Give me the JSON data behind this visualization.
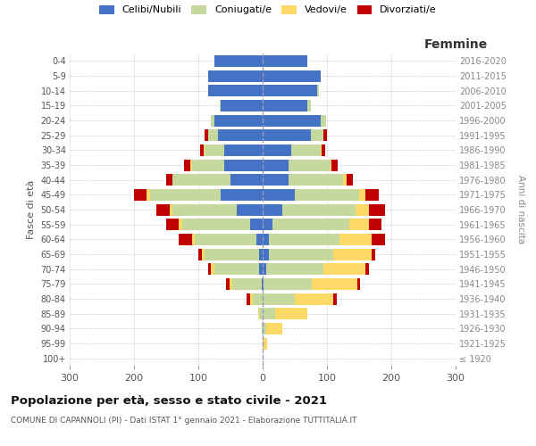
{
  "age_groups": [
    "100+",
    "95-99",
    "90-94",
    "85-89",
    "80-84",
    "75-79",
    "70-74",
    "65-69",
    "60-64",
    "55-59",
    "50-54",
    "45-49",
    "40-44",
    "35-39",
    "30-34",
    "25-29",
    "20-24",
    "15-19",
    "10-14",
    "5-9",
    "0-4"
  ],
  "birth_years": [
    "≤ 1920",
    "1921-1925",
    "1926-1930",
    "1931-1935",
    "1936-1940",
    "1941-1945",
    "1946-1950",
    "1951-1955",
    "1956-1960",
    "1961-1965",
    "1966-1970",
    "1971-1975",
    "1976-1980",
    "1981-1985",
    "1986-1990",
    "1991-1995",
    "1996-2000",
    "2001-2005",
    "2006-2010",
    "2011-2015",
    "2016-2020"
  ],
  "male": {
    "celibi": [
      0,
      0,
      0,
      0,
      0,
      2,
      5,
      5,
      10,
      20,
      40,
      65,
      50,
      60,
      60,
      70,
      75,
      65,
      85,
      85,
      75
    ],
    "coniugati": [
      0,
      0,
      2,
      5,
      15,
      45,
      70,
      85,
      95,
      105,
      100,
      110,
      90,
      50,
      30,
      15,
      5,
      2,
      0,
      0,
      0
    ],
    "vedovi": [
      0,
      0,
      0,
      2,
      5,
      5,
      5,
      5,
      5,
      5,
      5,
      5,
      0,
      2,
      2,
      0,
      0,
      0,
      0,
      0,
      0
    ],
    "divorziati": [
      0,
      0,
      0,
      0,
      5,
      5,
      5,
      5,
      20,
      20,
      20,
      20,
      10,
      10,
      5,
      5,
      0,
      0,
      0,
      0,
      0
    ]
  },
  "female": {
    "nubili": [
      0,
      0,
      0,
      0,
      0,
      2,
      5,
      10,
      10,
      15,
      30,
      50,
      40,
      40,
      45,
      75,
      90,
      70,
      85,
      90,
      70
    ],
    "coniugate": [
      0,
      2,
      5,
      20,
      50,
      75,
      90,
      100,
      110,
      120,
      115,
      100,
      85,
      65,
      45,
      20,
      8,
      5,
      2,
      0,
      0
    ],
    "vedove": [
      0,
      5,
      25,
      50,
      60,
      70,
      65,
      60,
      50,
      30,
      20,
      10,
      5,
      2,
      2,
      0,
      0,
      0,
      0,
      0,
      0
    ],
    "divorziate": [
      0,
      0,
      0,
      0,
      5,
      5,
      5,
      5,
      20,
      20,
      25,
      20,
      10,
      10,
      5,
      5,
      0,
      0,
      0,
      0,
      0
    ]
  },
  "colors": {
    "celibi": "#4472c4",
    "coniugati": "#c5d89d",
    "vedovi": "#ffd966",
    "divorziati": "#c00000"
  },
  "xlim": 300,
  "title": "Popolazione per età, sesso e stato civile - 2021",
  "subtitle": "COMUNE DI CAPANNOLI (PI) - Dati ISTAT 1° gennaio 2021 - Elaborazione TUTTITALIA.IT",
  "ylabel_left": "Fasce di età",
  "ylabel_right": "Anni di nascita",
  "xlabel_right": "Femmine",
  "legend_labels": [
    "Celibi/Nubili",
    "Coniugati/e",
    "Vedovi/e",
    "Divorziati/e"
  ]
}
